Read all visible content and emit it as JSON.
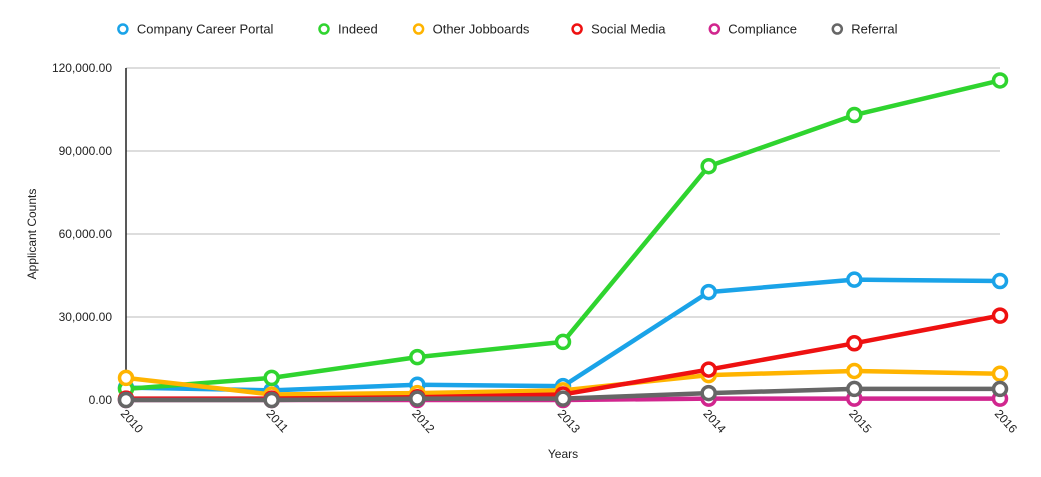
{
  "chart_data": {
    "type": "line",
    "title": "",
    "xlabel": "Years",
    "ylabel": "Applicant Counts",
    "categories": [
      "2010",
      "2011",
      "2012",
      "2013",
      "2014",
      "2015",
      "2016"
    ],
    "ylim": [
      0,
      120000
    ],
    "yticks": [
      0,
      30000,
      60000,
      90000,
      120000
    ],
    "ytick_labels": [
      "0.00",
      "30,000.00",
      "60,000.00",
      "90,000.00",
      "120,000.00"
    ],
    "grid": true,
    "legend_position": "top",
    "series": [
      {
        "name": "Company Career Portal",
        "color": "#1aa3e8",
        "values": [
          4500,
          3500,
          5500,
          5000,
          39000,
          43500,
          43000
        ]
      },
      {
        "name": "Indeed",
        "color": "#2fd42f",
        "values": [
          4000,
          8000,
          15500,
          21000,
          84500,
          103000,
          115500
        ]
      },
      {
        "name": "Other Jobboards",
        "color": "#ffb400",
        "values": [
          8000,
          2000,
          2500,
          3500,
          9000,
          10500,
          9500
        ]
      },
      {
        "name": "Social Media",
        "color": "#ee1111",
        "values": [
          500,
          500,
          1000,
          2000,
          11000,
          20500,
          30500
        ]
      },
      {
        "name": "Compliance",
        "color": "#d1268e",
        "values": [
          0,
          0,
          0,
          0,
          500,
          500,
          500
        ]
      },
      {
        "name": "Referral",
        "color": "#666666",
        "values": [
          0,
          0,
          500,
          500,
          2500,
          4000,
          4000
        ]
      }
    ]
  }
}
